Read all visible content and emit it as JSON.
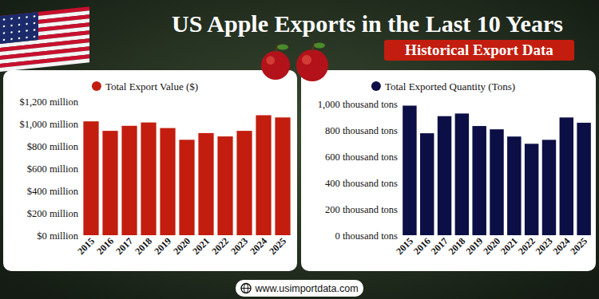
{
  "header": {
    "title": "US Apple Exports in the Last 10 Years",
    "subtitle": "Historical Export Data"
  },
  "footer": {
    "url": "www.usimportdata.com"
  },
  "chart_data": [
    {
      "type": "bar",
      "legend": "top",
      "grid": false,
      "categories": [
        "2015",
        "2016",
        "2017",
        "2018",
        "2019",
        "2020",
        "2021",
        "2022",
        "2023",
        "2024",
        "2025"
      ],
      "series": [
        {
          "name": "Total Export Value ($)",
          "color": "#c21d0e",
          "values": [
            1020,
            935,
            980,
            1010,
            960,
            855,
            915,
            885,
            935,
            1075,
            1055
          ]
        }
      ],
      "ylim": [
        0,
        1200
      ],
      "yticks": [
        {
          "value": 0,
          "label": "$0 million"
        },
        {
          "value": 200,
          "label": "$200 million"
        },
        {
          "value": 400,
          "label": "$400 million"
        },
        {
          "value": 600,
          "label": "$600 million"
        },
        {
          "value": 800,
          "label": "$800 million"
        },
        {
          "value": 1000,
          "label": "$1,000 million"
        },
        {
          "value": 1200,
          "label": "$1,200 million"
        }
      ]
    },
    {
      "type": "bar",
      "legend": "top",
      "grid": false,
      "categories": [
        "2015",
        "2016",
        "2017",
        "2018",
        "2019",
        "2020",
        "2021",
        "2022",
        "2023",
        "2024",
        "2025"
      ],
      "series": [
        {
          "name": "Total Exported Quantity (Tons)",
          "color": "#0c0f45",
          "values": [
            985,
            775,
            905,
            925,
            830,
            805,
            750,
            695,
            725,
            895,
            855
          ]
        }
      ],
      "ylim": [
        0,
        1000
      ],
      "yticks": [
        {
          "value": 0,
          "label": "0 thousand tons"
        },
        {
          "value": 200,
          "label": "200 thousand tons"
        },
        {
          "value": 400,
          "label": "400 thousand tons"
        },
        {
          "value": 600,
          "label": "600 thousand tons"
        },
        {
          "value": 800,
          "label": "800 thousand tons"
        },
        {
          "value": 1000,
          "label": "1,000 thousand tons"
        }
      ]
    }
  ]
}
